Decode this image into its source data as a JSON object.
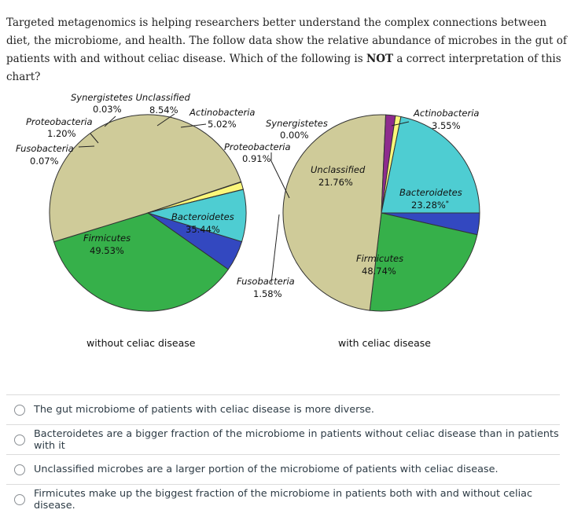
{
  "question": {
    "part1": "Targeted metagenomics is helping researchers better understand the complex connections between diet, the microbiome, and health. The follow data show the relative abundance of microbes in the gut of patients with and without celiac disease. Which of the following is ",
    "emphasis": "NOT",
    "part2": " a correct interpretation of this chart?"
  },
  "chart_data": [
    {
      "type": "pie",
      "title": "without celiac disease",
      "slices": [
        {
          "name": "Actinobacteria",
          "value": 5.02,
          "label": "5.02%",
          "color": "#3348c0"
        },
        {
          "name": "Bacteroidetes",
          "value": 35.44,
          "label": "35.44%",
          "color": "#36b04a"
        },
        {
          "name": "Firmicutes",
          "value": 49.53,
          "label": "49.53%",
          "color": "#cfcb99"
        },
        {
          "name": "Fusobacteria",
          "value": 0.07,
          "label": "0.07%",
          "color": "#8e2b8e"
        },
        {
          "name": "Proteobacteria",
          "value": 1.2,
          "label": "1.20%",
          "color": "#fbf77a"
        },
        {
          "name": "Synergistetes Unclassified",
          "value": 0.03,
          "label": "0.03%",
          "color": "#7fd7d2"
        },
        {
          "name": "Unclassified",
          "value": 8.54,
          "label": "8.54%",
          "color": "#4ecdd2"
        }
      ]
    },
    {
      "type": "pie",
      "title": "with celiac disease",
      "slices": [
        {
          "name": "Actinobacteria",
          "value": 3.55,
          "label": "3.55%",
          "color": "#3348c0"
        },
        {
          "name": "Bacteroidetes",
          "value": 23.28,
          "label": "23.28%",
          "mark": "*",
          "color": "#36b04a"
        },
        {
          "name": "Firmicutes",
          "value": 48.74,
          "label": "48.74%",
          "color": "#cfcb99"
        },
        {
          "name": "Fusobacteria",
          "value": 1.58,
          "label": "1.58%",
          "color": "#8e2b8e"
        },
        {
          "name": "Proteobacteria",
          "value": 0.91,
          "label": "0.91%",
          "color": "#fbf77a"
        },
        {
          "name": "Synergistetes",
          "value": 0.0,
          "label": "0.00%",
          "color": "#7fd7d2"
        },
        {
          "name": "Unclassified",
          "value": 21.76,
          "label": "21.76%",
          "color": "#4ecdd2"
        }
      ]
    }
  ],
  "options": [
    "The gut microbiome of patients with celiac disease is more diverse.",
    "Bacteroidetes are a bigger fraction of the microbiome in patients without celiac disease than in patients with it",
    "Unclassified microbes are a larger portion of the microbiome of patients with celiac disease.",
    "Firmicutes make up the biggest fraction of the microbiome in patients both with and without celiac disease."
  ]
}
